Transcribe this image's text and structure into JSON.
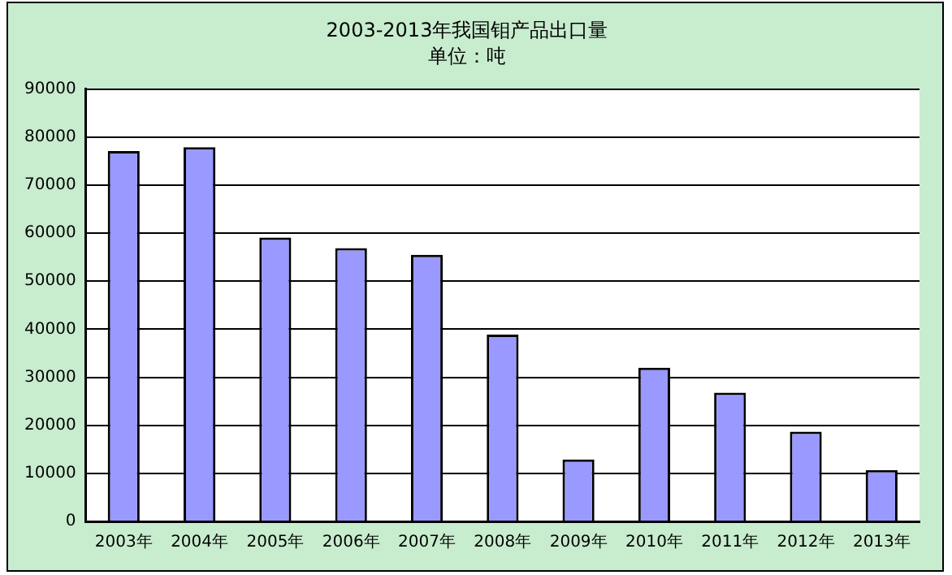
{
  "chart_data": {
    "type": "bar",
    "title": "2003-2013年我国钼产品出口量",
    "subtitle": "单位：吨",
    "categories": [
      "2003年",
      "2004年",
      "2005年",
      "2006年",
      "2007年",
      "2008年",
      "2009年",
      "2010年",
      "2011年",
      "2012年",
      "2013年"
    ],
    "values": [
      77100,
      77900,
      59100,
      56900,
      55500,
      38900,
      12900,
      32000,
      26800,
      18700,
      10700
    ],
    "color": "#9999ff",
    "ylim": [
      0,
      90000
    ],
    "yticks": [
      0,
      10000,
      20000,
      30000,
      40000,
      50000,
      60000,
      70000,
      80000,
      90000
    ],
    "grid": "y",
    "legend": false
  }
}
